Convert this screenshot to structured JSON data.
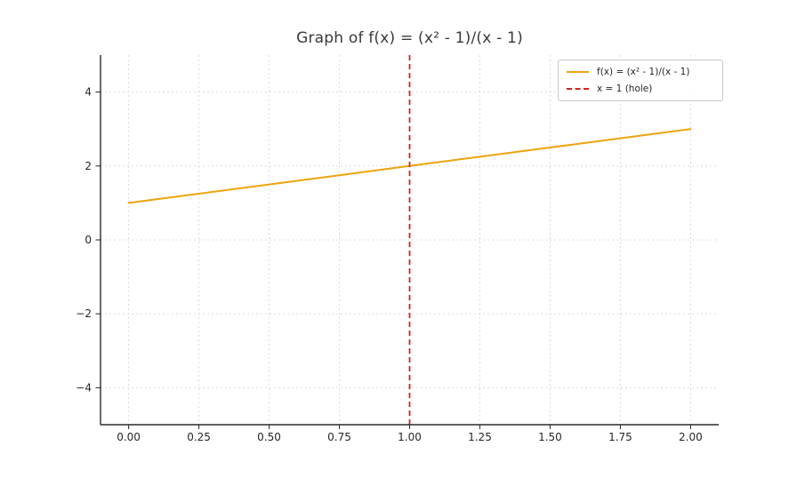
{
  "chart_data": {
    "type": "line",
    "title": "Graph of f(x) = (x² - 1)/(x - 1)",
    "xlabel": "",
    "ylabel": "",
    "xlim": [
      -0.1,
      2.1
    ],
    "ylim": [
      -5,
      5
    ],
    "x_ticks": [
      0.0,
      0.25,
      0.5,
      0.75,
      1.0,
      1.25,
      1.5,
      1.75,
      2.0
    ],
    "x_tick_labels": [
      "0.00",
      "0.25",
      "0.50",
      "0.75",
      "1.00",
      "1.25",
      "1.50",
      "1.75",
      "2.00"
    ],
    "y_ticks": [
      -4,
      -2,
      0,
      2,
      4
    ],
    "y_tick_labels": [
      "−4",
      "−2",
      "0",
      "2",
      "4"
    ],
    "grid": true,
    "grid_style": "dashed",
    "legend_position": "upper right",
    "series": [
      {
        "name": "f(x) = (x² - 1)/(x - 1)",
        "type": "line",
        "style": "solid",
        "color": "#ECA40C",
        "x": [
          0,
          0.25,
          0.5,
          0.75,
          1.0,
          1.25,
          1.5,
          1.75,
          2.0
        ],
        "y": [
          1.0,
          1.25,
          1.5,
          1.75,
          2.0,
          2.25,
          2.5,
          2.75,
          3.0
        ]
      },
      {
        "name": "x = 1 (hole)",
        "type": "vline",
        "style": "dashed",
        "color": "#D92020",
        "x": 1.0
      }
    ]
  },
  "legend": {
    "entries": [
      {
        "label": "f(x) = (x² - 1)/(x - 1)",
        "color": "#ECA40C",
        "dash": "solid"
      },
      {
        "label": "x = 1 (hole)",
        "color": "#D92020",
        "dash": "dashed"
      }
    ]
  },
  "colors": {
    "background": "#FFFFFF",
    "grid": "#DBDBDB",
    "spine": "#2a2a2a",
    "tick": "#333333",
    "tick_label": "#262626",
    "title": "#3A3A3A"
  }
}
